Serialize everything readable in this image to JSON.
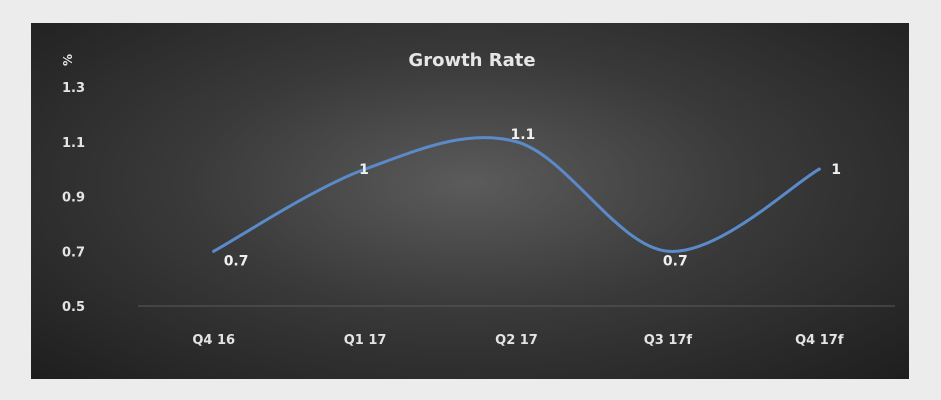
{
  "chart_data": {
    "type": "line",
    "title": "Growth Rate",
    "ylabel": "%",
    "xlabel": "",
    "categories": [
      "Q4 16",
      "Q1 17",
      "Q2 17",
      "Q3 17f",
      "Q4 17f"
    ],
    "series": [
      {
        "values": [
          0.7,
          1.0,
          1.1,
          0.7,
          1.0
        ],
        "smooth": true
      }
    ],
    "data_labels": [
      "0.7",
      "1",
      "1.1",
      "0.7",
      "1"
    ],
    "yticks": [
      "0.5",
      "0.7",
      "0.9",
      "1.1",
      "1.3"
    ],
    "ylim": [
      0.5,
      1.3
    ],
    "grid": false,
    "legend": "none",
    "colors": {
      "line": "#5b8ac9",
      "background": "#3a3a3a",
      "text": "#e4e4e4"
    }
  }
}
